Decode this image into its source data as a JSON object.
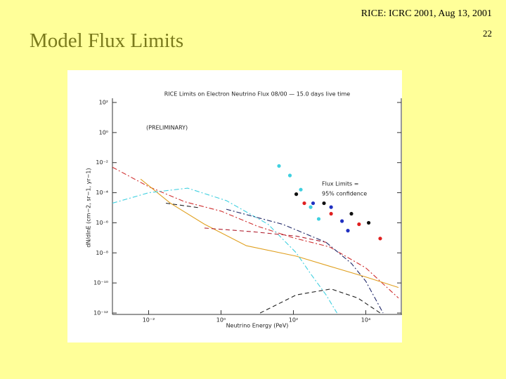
{
  "slide": {
    "title": "Model Flux Limits",
    "header": "RICE: ICRC 2001, Aug 13, 2001",
    "page_number": "22"
  },
  "chart_data": {
    "type": "line",
    "title": "RICE Limits on Electron Neutrino Flux 08/00 — 15.0 days live time",
    "x_label": "Neutrino Energy (PeV)",
    "y_label": "dN/dlnE (cm−2, sr−1, yr−1)",
    "annotations": [
      {
        "text": "(PRELIMINARY)",
        "color": "#e02828"
      },
      {
        "text": "Flux Limits =",
        "color": "#3850c8"
      },
      {
        "text": "95% confidence",
        "color": "#3850c8"
      }
    ],
    "log_x": true,
    "log_y": true,
    "xlim": [
      0.001,
      100000
    ],
    "ylim": [
      1e-12,
      100
    ],
    "xticks": [
      {
        "value": 0.01,
        "label": "10⁻²"
      },
      {
        "value": 1,
        "label": "10⁰"
      },
      {
        "value": 100,
        "label": "10²"
      },
      {
        "value": 10000,
        "label": "10⁴"
      }
    ],
    "yticks": [
      {
        "value": 100,
        "label": "10²"
      },
      {
        "value": 1,
        "label": "10⁰"
      },
      {
        "value": 0.01,
        "label": "10⁻²"
      },
      {
        "value": 0.0001,
        "label": "10⁻⁴"
      },
      {
        "value": 1e-06,
        "label": "10⁻⁶"
      },
      {
        "value": 1e-08,
        "label": "10⁻⁸"
      },
      {
        "value": 1e-10,
        "label": "10⁻¹⁰"
      },
      {
        "value": 1e-12,
        "label": "10⁻¹²"
      }
    ],
    "series": [
      {
        "color": "#d03030",
        "style": "dashdot",
        "x": [
          0.001,
          0.01,
          0.1,
          1,
          10,
          100,
          1000,
          10000,
          80000
        ],
        "values": [
          0.005,
          0.00025,
          2.5e-05,
          6e-06,
          6e-07,
          1e-07,
          2.5e-08,
          1e-09,
          1e-11
        ]
      },
      {
        "color": "#e0a020",
        "style": "solid",
        "x": [
          0.006,
          0.04,
          0.35,
          5,
          120,
          1000,
          10000,
          80000
        ],
        "values": [
          0.0008,
          2e-05,
          8e-07,
          3e-08,
          6e-09,
          1.3e-09,
          2.5e-10,
          5e-11
        ]
      },
      {
        "color": "#40d0e0",
        "style": "dashdot",
        "x": [
          0.001,
          0.01,
          0.12,
          1.4,
          20,
          120,
          300,
          800,
          1600
        ],
        "values": [
          2e-05,
          0.0001,
          0.0002,
          3e-05,
          8e-07,
          1e-08,
          4e-10,
          1.6e-11,
          1e-12
        ]
      },
      {
        "color": "#202868",
        "style": "dashdot",
        "x": [
          1.4,
          50,
          800,
          4000,
          10000,
          30000
        ],
        "values": [
          8e-06,
          8e-07,
          5e-08,
          2e-09,
          1.3e-10,
          1e-12
        ]
      },
      {
        "color": "#202020",
        "style": "dashed",
        "x": [
          0.03,
          0.25
        ],
        "values": [
          2e-05,
          1e-05
        ]
      },
      {
        "color": "#202020",
        "style": "dashed",
        "x": [
          12,
          120,
          1100,
          6000,
          25000
        ],
        "values": [
          1e-12,
          1.6e-11,
          4e-11,
          1e-11,
          1e-12
        ]
      },
      {
        "color": "#b02030",
        "style": "dashed",
        "x": [
          0.35,
          8,
          120,
          800
        ],
        "values": [
          4.5e-07,
          2.5e-07,
          1.3e-07,
          5e-08
        ]
      },
      {
        "color": "#40d0e0",
        "style": "dots",
        "x": [
          40,
          80,
          160,
          300,
          500
        ],
        "values": [
          0.006,
          0.0014,
          0.00016,
          1.1e-05,
          1.8e-06
        ]
      },
      {
        "color": "#101010",
        "style": "dots",
        "x": [
          120,
          700,
          4000,
          12000
        ],
        "values": [
          8e-05,
          2e-05,
          4e-06,
          1e-06
        ]
      },
      {
        "color": "#e02020",
        "style": "dots",
        "x": [
          200,
          1100,
          6500,
          25000
        ],
        "values": [
          2e-05,
          4e-06,
          8e-07,
          9e-08
        ]
      },
      {
        "color": "#2030c0",
        "style": "dots",
        "x": [
          350,
          1100,
          2200,
          3200
        ],
        "values": [
          2e-05,
          1.1e-05,
          1.3e-06,
          3e-07
        ]
      }
    ]
  }
}
